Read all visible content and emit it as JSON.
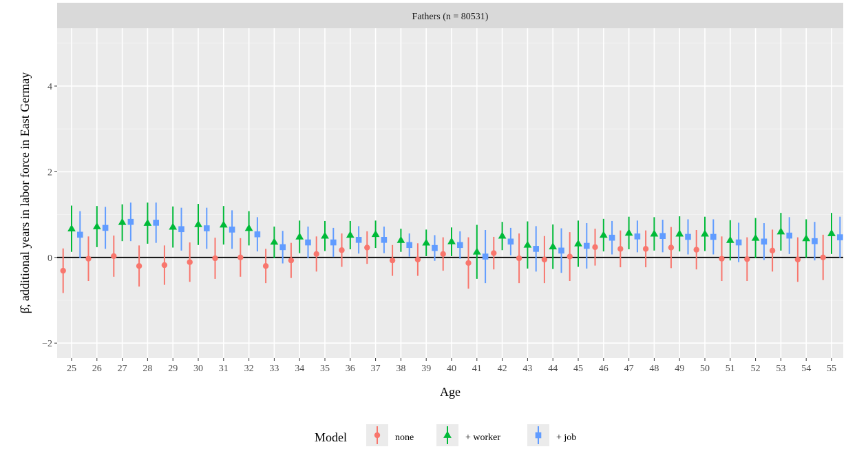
{
  "chart_data": {
    "type": "scatter",
    "panel_title": "Fathers (n = 80531)",
    "xlabel": "Age",
    "ylabel": "β̂, additional years in labor force in East Germay",
    "ylim": [
      -2.35,
      5.35
    ],
    "yticks": [
      -2,
      0,
      2,
      4
    ],
    "categories": [
      "25",
      "26",
      "27",
      "28",
      "29",
      "30",
      "31",
      "32",
      "33",
      "34",
      "35",
      "36",
      "37",
      "38",
      "39",
      "40",
      "41",
      "42",
      "43",
      "44",
      "45",
      "46",
      "47",
      "48",
      "49",
      "50",
      "51",
      "52",
      "53",
      "54",
      "55"
    ],
    "reference_line": 0,
    "legend": {
      "title": "Model",
      "position": "bottom"
    },
    "series": [
      {
        "name": "none",
        "color": "#F8766D",
        "marker": "circle",
        "values": [
          -0.31,
          -0.03,
          0.03,
          -0.2,
          -0.18,
          -0.11,
          -0.02,
          0.0,
          -0.2,
          -0.07,
          0.08,
          0.17,
          0.23,
          -0.07,
          -0.05,
          0.08,
          -0.13,
          0.1,
          -0.02,
          -0.05,
          0.02,
          0.24,
          0.2,
          0.2,
          0.23,
          0.18,
          -0.03,
          -0.04,
          0.16,
          -0.05,
          0.0
        ],
        "lower": [
          -0.83,
          -0.55,
          -0.45,
          -0.68,
          -0.64,
          -0.57,
          -0.5,
          -0.45,
          -0.6,
          -0.48,
          -0.33,
          -0.22,
          -0.15,
          -0.43,
          -0.43,
          -0.31,
          -0.73,
          -0.28,
          -0.6,
          -0.6,
          -0.55,
          -0.19,
          -0.23,
          -0.23,
          -0.25,
          -0.28,
          -0.55,
          -0.55,
          -0.33,
          -0.57,
          -0.53
        ],
        "upper": [
          0.21,
          0.49,
          0.51,
          0.28,
          0.28,
          0.35,
          0.46,
          0.45,
          0.2,
          0.34,
          0.49,
          0.56,
          0.61,
          0.29,
          0.33,
          0.47,
          0.47,
          0.48,
          0.56,
          0.5,
          0.59,
          0.67,
          0.63,
          0.63,
          0.71,
          0.64,
          0.49,
          0.47,
          0.65,
          0.47,
          0.53
        ]
      },
      {
        "name": "+ worker",
        "color": "#00BA38",
        "marker": "triangle",
        "values": [
          0.67,
          0.72,
          0.82,
          0.8,
          0.71,
          0.77,
          0.76,
          0.68,
          0.36,
          0.48,
          0.5,
          0.52,
          0.54,
          0.4,
          0.34,
          0.37,
          0.13,
          0.5,
          0.29,
          0.25,
          0.32,
          0.52,
          0.57,
          0.55,
          0.55,
          0.55,
          0.4,
          0.45,
          0.6,
          0.44,
          0.56
        ],
        "lower": [
          0.13,
          0.24,
          0.38,
          0.32,
          0.23,
          0.29,
          0.3,
          0.28,
          -0.02,
          0.1,
          0.15,
          0.19,
          0.22,
          0.13,
          0.03,
          0.03,
          -0.5,
          0.17,
          -0.26,
          -0.27,
          -0.22,
          0.14,
          0.19,
          0.16,
          0.14,
          0.15,
          -0.07,
          -0.02,
          0.16,
          -0.01,
          0.08
        ],
        "upper": [
          1.21,
          1.2,
          1.24,
          1.28,
          1.19,
          1.25,
          1.2,
          1.08,
          0.72,
          0.86,
          0.85,
          0.85,
          0.86,
          0.67,
          0.65,
          0.7,
          0.76,
          0.83,
          0.84,
          0.77,
          0.86,
          0.9,
          0.95,
          0.94,
          0.96,
          0.95,
          0.87,
          0.92,
          1.04,
          0.89,
          1.04
        ]
      },
      {
        "name": "+ job",
        "color": "#619CFF",
        "marker": "square",
        "values": [
          0.53,
          0.69,
          0.83,
          0.81,
          0.66,
          0.68,
          0.65,
          0.54,
          0.24,
          0.35,
          0.35,
          0.41,
          0.41,
          0.29,
          0.22,
          0.29,
          0.02,
          0.37,
          0.2,
          0.16,
          0.27,
          0.46,
          0.49,
          0.5,
          0.48,
          0.48,
          0.35,
          0.37,
          0.51,
          0.38,
          0.47
        ],
        "lower": [
          -0.02,
          0.2,
          0.38,
          0.34,
          0.16,
          0.2,
          0.2,
          0.14,
          -0.14,
          -0.02,
          0.01,
          0.09,
          0.1,
          0.02,
          -0.08,
          -0.03,
          -0.6,
          0.05,
          -0.33,
          -0.36,
          -0.26,
          0.07,
          0.12,
          0.12,
          0.07,
          0.07,
          -0.11,
          -0.06,
          0.08,
          -0.07,
          -0.01
        ],
        "upper": [
          1.08,
          1.18,
          1.28,
          1.28,
          1.16,
          1.16,
          1.1,
          0.94,
          0.62,
          0.72,
          0.69,
          0.73,
          0.72,
          0.56,
          0.52,
          0.61,
          0.64,
          0.69,
          0.73,
          0.68,
          0.8,
          0.85,
          0.86,
          0.88,
          0.89,
          0.89,
          0.81,
          0.8,
          0.94,
          0.83,
          0.95
        ]
      }
    ]
  }
}
